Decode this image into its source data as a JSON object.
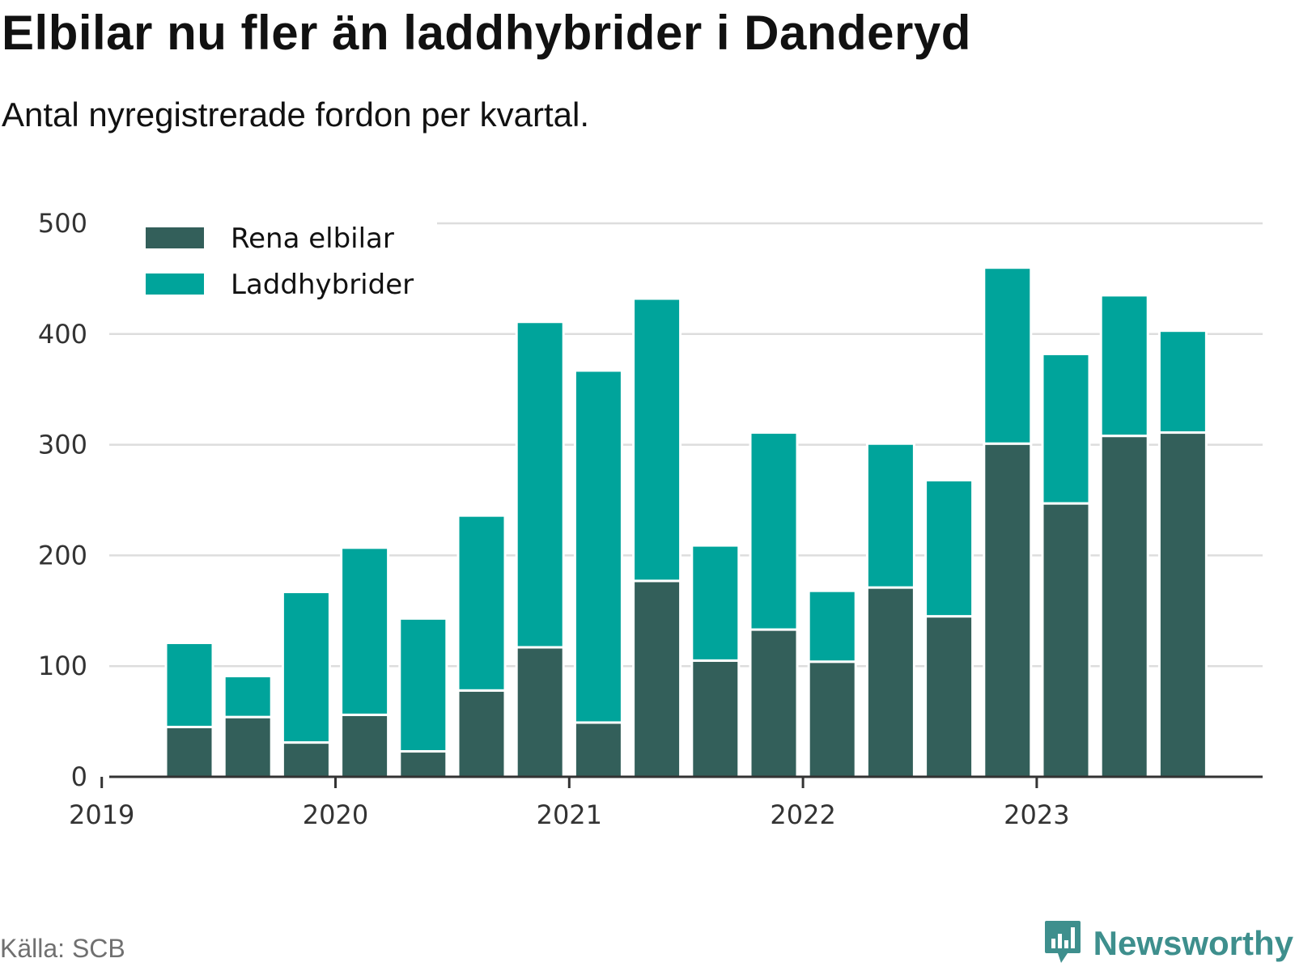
{
  "chart_data": {
    "type": "bar",
    "stacked": true,
    "title": "Elbilar nu fler än laddhybrider i Danderyd",
    "subtitle": "Antal nyregistrerade fordon per kvartal.",
    "xlabel": "",
    "ylabel": "",
    "ylim": [
      0,
      500
    ],
    "yticks": [
      "0",
      "100",
      "200",
      "300",
      "400",
      "500"
    ],
    "xticks": [
      "2019",
      "2020",
      "2021",
      "2022",
      "2023"
    ],
    "categories": [
      "2019-Q2",
      "2019-Q3",
      "2019-Q4",
      "2020-Q1",
      "2020-Q2",
      "2020-Q3",
      "2020-Q4",
      "2021-Q1",
      "2021-Q2",
      "2021-Q3",
      "2021-Q4",
      "2022-Q1",
      "2022-Q2",
      "2022-Q3",
      "2022-Q4",
      "2023-Q1",
      "2023-Q2",
      "2023-Q3"
    ],
    "series": [
      {
        "name": "Rena elbilar",
        "color": "#335f5a",
        "values": [
          45,
          54,
          31,
          56,
          23,
          78,
          117,
          49,
          177,
          105,
          133,
          104,
          171,
          145,
          301,
          247,
          308,
          311
        ]
      },
      {
        "name": "Laddhybrider",
        "color": "#00a49b",
        "values": [
          76,
          37,
          136,
          151,
          120,
          158,
          294,
          318,
          255,
          104,
          178,
          64,
          130,
          123,
          159,
          135,
          127,
          92
        ]
      }
    ],
    "grid": true,
    "legend": "top-left"
  },
  "source": "Källa: SCB",
  "brand": "Newsworthy",
  "colors": {
    "gridline": "#dddddd",
    "axis": "#333333",
    "brand": "#3e8f8d"
  }
}
